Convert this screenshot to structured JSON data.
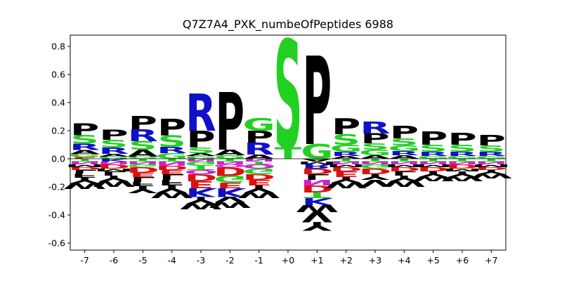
{
  "chart_data": {
    "type": "sequence-logo",
    "title": "Q7Z7A4_PXK_numbeOfPeptides 6988",
    "xlabel": "",
    "ylabel": "",
    "ylim": [
      -0.65,
      0.88
    ],
    "yticks": [
      "-0.6",
      "-0.4",
      "-0.2",
      "0.0",
      "0.2",
      "0.4",
      "0.6",
      "0.8"
    ],
    "ytick_values": [
      -0.6,
      -0.4,
      -0.2,
      0.0,
      0.2,
      0.4,
      0.6,
      0.8
    ],
    "grid": false,
    "legend": "none",
    "color_map": {
      "P": "#000000",
      "A": "#000000",
      "V": "#000000",
      "L": "#000000",
      "I": "#000000",
      "M": "#000000",
      "F": "#000000",
      "W": "#000000",
      "Y": "#000000",
      "S": "#22d022",
      "T": "#22d022",
      "G": "#22d022",
      "C": "#22d022",
      "N": "#d020d0",
      "Q": "#d020d0",
      "R": "#1010c8",
      "K": "#1010c8",
      "H": "#1010c8",
      "D": "#dd1010",
      "E": "#dd1010"
    },
    "positions": [
      {
        "label": "-7",
        "positive": [
          [
            "P",
            0.085
          ],
          [
            "S",
            0.06
          ],
          [
            "R",
            0.045
          ],
          [
            "A",
            0.03
          ],
          [
            "G",
            0.02
          ],
          [
            "E",
            0.012
          ]
        ],
        "negative": [
          [
            "T",
            0.02
          ],
          [
            "N",
            0.02
          ],
          [
            "M",
            0.02
          ],
          [
            "D",
            0.02
          ],
          [
            "L",
            0.025
          ],
          [
            "F",
            0.03
          ],
          [
            "Y",
            0.04
          ],
          [
            "W",
            0.04
          ]
        ]
      },
      {
        "label": "-6",
        "positive": [
          [
            "P",
            0.07
          ],
          [
            "S",
            0.055
          ],
          [
            "R",
            0.045
          ],
          [
            "A",
            0.02
          ],
          [
            "G",
            0.015
          ]
        ],
        "negative": [
          [
            "K",
            0.02
          ],
          [
            "N",
            0.02
          ],
          [
            "D",
            0.03
          ],
          [
            "M",
            0.02
          ],
          [
            "L",
            0.03
          ],
          [
            "Y",
            0.04
          ],
          [
            "W",
            0.04
          ]
        ]
      },
      {
        "label": "-5",
        "positive": [
          [
            "P",
            0.095
          ],
          [
            "R",
            0.085
          ],
          [
            "S",
            0.06
          ],
          [
            "A",
            0.05
          ],
          [
            "G",
            0.015
          ]
        ],
        "negative": [
          [
            "T",
            0.02
          ],
          [
            "N",
            0.02
          ],
          [
            "G",
            0.02
          ],
          [
            "D",
            0.04
          ],
          [
            "E",
            0.03
          ],
          [
            "L",
            0.035
          ],
          [
            "F",
            0.03
          ],
          [
            "Y",
            0.05
          ]
        ]
      },
      {
        "label": "-4",
        "positive": [
          [
            "P",
            0.12
          ],
          [
            "S",
            0.08
          ],
          [
            "R",
            0.045
          ],
          [
            "G",
            0.04
          ]
        ],
        "negative": [
          [
            "T",
            0.02
          ],
          [
            "N",
            0.03
          ],
          [
            "D",
            0.03
          ],
          [
            "E",
            0.03
          ],
          [
            "L",
            0.04
          ],
          [
            "F",
            0.04
          ],
          [
            "Y",
            0.05
          ],
          [
            "W",
            0.04
          ]
        ]
      },
      {
        "label": "-3",
        "positive": [
          [
            "R",
            0.265
          ],
          [
            "P",
            0.12
          ],
          [
            "S",
            0.04
          ],
          [
            "G",
            0.02
          ],
          [
            "A",
            0.02
          ]
        ],
        "negative": [
          [
            "N",
            0.02
          ],
          [
            "G",
            0.03
          ],
          [
            "T",
            0.03
          ],
          [
            "Q",
            0.03
          ],
          [
            "D",
            0.05
          ],
          [
            "E",
            0.05
          ],
          [
            "K",
            0.06
          ],
          [
            "Y",
            0.05
          ],
          [
            "W",
            0.04
          ]
        ]
      },
      {
        "label": "-2",
        "positive": [
          [
            "P",
            0.41
          ],
          [
            "A",
            0.04
          ],
          [
            "G",
            0.025
          ]
        ],
        "negative": [
          [
            "T",
            0.02
          ],
          [
            "N",
            0.02
          ],
          [
            "Q",
            0.02
          ],
          [
            "D",
            0.06
          ],
          [
            "G",
            0.05
          ],
          [
            "E",
            0.04
          ],
          [
            "K",
            0.06
          ],
          [
            "V",
            0.04
          ],
          [
            "W",
            0.04
          ]
        ]
      },
      {
        "label": "-1",
        "positive": [
          [
            "R",
            0.085
          ],
          [
            "P",
            0.085
          ],
          [
            "G",
            0.09
          ],
          [
            "A",
            0.03
          ]
        ],
        "negative": [
          [
            "N",
            0.02
          ],
          [
            "T",
            0.02
          ],
          [
            "Q",
            0.03
          ],
          [
            "G",
            0.04
          ],
          [
            "D",
            0.04
          ],
          [
            "E",
            0.04
          ],
          [
            "Y",
            0.05
          ],
          [
            "W",
            0.04
          ]
        ]
      },
      {
        "label": "+0",
        "positive": [
          [
            "S",
            0.77
          ],
          [
            "T",
            0.08
          ]
        ],
        "negative": []
      },
      {
        "label": "+1",
        "positive": [
          [
            "P",
            0.63
          ],
          [
            "G",
            0.105
          ]
        ],
        "negative": [
          [
            "A",
            0.02
          ],
          [
            "M",
            0.02
          ],
          [
            "R",
            0.03
          ],
          [
            "D",
            0.04
          ],
          [
            "L",
            0.04
          ],
          [
            "N",
            0.04
          ],
          [
            "D",
            0.05
          ],
          [
            "T",
            0.04
          ],
          [
            "K",
            0.05
          ],
          [
            "W",
            0.05
          ],
          [
            "V",
            0.07
          ],
          [
            "Y",
            0.06
          ]
        ]
      },
      {
        "label": "+2",
        "positive": [
          [
            "P",
            0.115
          ],
          [
            "S",
            0.075
          ],
          [
            "G",
            0.05
          ],
          [
            "R",
            0.03
          ],
          [
            "A",
            0.02
          ]
        ],
        "negative": [
          [
            "T",
            0.02
          ],
          [
            "N",
            0.02
          ],
          [
            "M",
            0.02
          ],
          [
            "D",
            0.03
          ],
          [
            "E",
            0.04
          ],
          [
            "Y",
            0.04
          ],
          [
            "W",
            0.04
          ]
        ]
      },
      {
        "label": "+3",
        "positive": [
          [
            "P",
            0.07
          ],
          [
            "R",
            0.085
          ],
          [
            "S",
            0.045
          ],
          [
            "G",
            0.04
          ],
          [
            "A",
            0.025
          ]
        ],
        "negative": [
          [
            "T",
            0.02
          ],
          [
            "N",
            0.02
          ],
          [
            "G",
            0.03
          ],
          [
            "D",
            0.04
          ],
          [
            "Y",
            0.04
          ],
          [
            "V",
            0.05
          ]
        ]
      },
      {
        "label": "+4",
        "positive": [
          [
            "P",
            0.09
          ],
          [
            "S",
            0.05
          ],
          [
            "G",
            0.04
          ],
          [
            "R",
            0.03
          ],
          [
            "A",
            0.025
          ]
        ],
        "negative": [
          [
            "T",
            0.02
          ],
          [
            "N",
            0.02
          ],
          [
            "M",
            0.02
          ],
          [
            "D",
            0.03
          ],
          [
            "L",
            0.03
          ],
          [
            "Y",
            0.04
          ],
          [
            "W",
            0.04
          ]
        ]
      },
      {
        "label": "+5",
        "positive": [
          [
            "P",
            0.095
          ],
          [
            "S",
            0.05
          ],
          [
            "R",
            0.03
          ],
          [
            "G",
            0.02
          ]
        ],
        "negative": [
          [
            "T",
            0.02
          ],
          [
            "N",
            0.02
          ],
          [
            "M",
            0.02
          ],
          [
            "D",
            0.03
          ],
          [
            "Y",
            0.04
          ],
          [
            "W",
            0.03
          ]
        ]
      },
      {
        "label": "+6",
        "positive": [
          [
            "P",
            0.085
          ],
          [
            "S",
            0.05
          ],
          [
            "R",
            0.03
          ],
          [
            "G",
            0.02
          ]
        ],
        "negative": [
          [
            "T",
            0.02
          ],
          [
            "N",
            0.02
          ],
          [
            "D",
            0.03
          ],
          [
            "M",
            0.02
          ],
          [
            "Y",
            0.04
          ],
          [
            "W",
            0.03
          ]
        ]
      },
      {
        "label": "+7",
        "positive": [
          [
            "P",
            0.075
          ],
          [
            "S",
            0.045
          ],
          [
            "R",
            0.03
          ],
          [
            "G",
            0.02
          ]
        ],
        "negative": [
          [
            "T",
            0.02
          ],
          [
            "N",
            0.02
          ],
          [
            "M",
            0.02
          ],
          [
            "D",
            0.02
          ],
          [
            "Y",
            0.03
          ],
          [
            "W",
            0.03
          ]
        ]
      }
    ]
  }
}
